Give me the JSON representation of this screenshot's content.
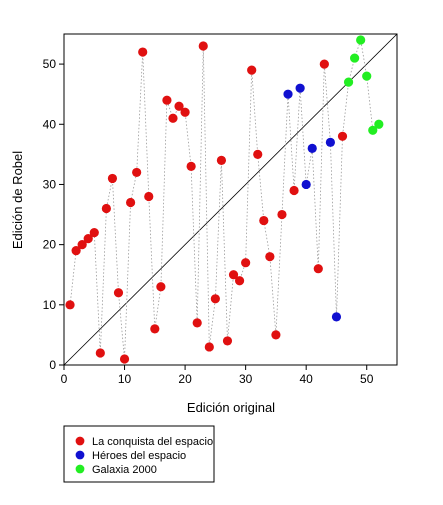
{
  "chart_data": {
    "type": "scatter",
    "xlabel": "Edición original",
    "ylabel": "Edición de Robel",
    "xlim": [
      0,
      55
    ],
    "ylim": [
      0,
      55
    ],
    "xticks": [
      "0",
      "10",
      "20",
      "30",
      "40",
      "50"
    ],
    "yticks": [
      "0",
      "10",
      "20",
      "30",
      "40",
      "50"
    ],
    "grid": false,
    "connecting_line": "dotted grey, in x order",
    "reference_line": "y = x",
    "legend_position": "bottom-left, below plot",
    "series": [
      {
        "name": "La conquista del espacio",
        "color": "#e01010",
        "points": [
          [
            1,
            10
          ],
          [
            2,
            19
          ],
          [
            3,
            20
          ],
          [
            4,
            21
          ],
          [
            5,
            22
          ],
          [
            6,
            2
          ],
          [
            7,
            26
          ],
          [
            8,
            31
          ],
          [
            9,
            12
          ],
          [
            10,
            1
          ],
          [
            11,
            27
          ],
          [
            12,
            32
          ],
          [
            13,
            52
          ],
          [
            14,
            28
          ],
          [
            15,
            6
          ],
          [
            16,
            13
          ],
          [
            17,
            44
          ],
          [
            18,
            41
          ],
          [
            19,
            43
          ],
          [
            20,
            42
          ],
          [
            21,
            33
          ],
          [
            22,
            7
          ],
          [
            23,
            53
          ],
          [
            24,
            3
          ],
          [
            25,
            11
          ],
          [
            26,
            34
          ],
          [
            27,
            4
          ],
          [
            28,
            15
          ],
          [
            29,
            14
          ],
          [
            30,
            17
          ],
          [
            31,
            49
          ],
          [
            32,
            35
          ],
          [
            33,
            24
          ],
          [
            34,
            18
          ],
          [
            35,
            5
          ],
          [
            36,
            25
          ],
          [
            38,
            29
          ],
          [
            42,
            16
          ],
          [
            43,
            50
          ],
          [
            46,
            38
          ]
        ]
      },
      {
        "name": "Héroes del espacio",
        "color": "#1010d0",
        "points": [
          [
            37,
            45
          ],
          [
            39,
            46
          ],
          [
            40,
            30
          ],
          [
            41,
            36
          ],
          [
            44,
            37
          ],
          [
            45,
            8
          ]
        ]
      },
      {
        "name": "Galaxia 2000",
        "color": "#22ee22",
        "points": [
          [
            47,
            47
          ],
          [
            48,
            51
          ],
          [
            49,
            54
          ],
          [
            50,
            48
          ],
          [
            51,
            39
          ],
          [
            52,
            40
          ]
        ]
      }
    ]
  }
}
